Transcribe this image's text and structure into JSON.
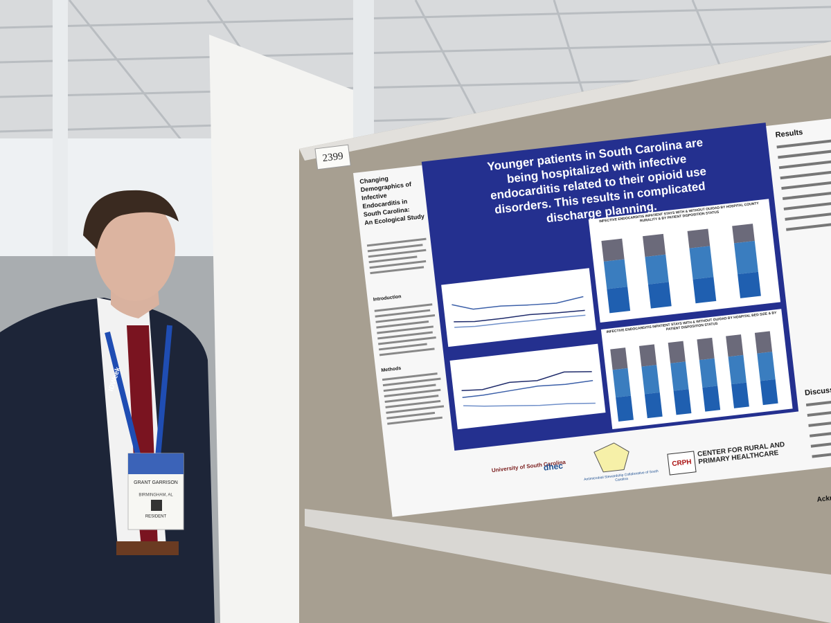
{
  "board": {
    "number": "2399"
  },
  "poster": {
    "title_lines": [
      "Changing",
      "Demographics of",
      "Infective",
      "Endocarditis in",
      "South Carolina:",
      "An Ecological Study"
    ],
    "headline_lines": [
      "Younger patients in South Carolina are",
      "being hospitalized with infective",
      "endocarditis related to their opioid use",
      "disorders. This results in complicated",
      "discharge planning."
    ],
    "sections": [
      "Introduction",
      "Methods",
      "Results",
      "Discussion",
      "Acknowledgements"
    ],
    "chart_titles": [
      "INFECTIVE ENDOCARDITIS INPATIENT STAYS WITH & WITHOUT OU/OAD BY HOSPITAL COUNTY RURALITY & BY PATIENT DISPOSITION STATUS",
      "INFECTIVE ENDOCARDITIS INPATIENT STAYS WITH & WITHOUT OU/OAD BY HOSPITAL BED SIZE & BY PATIENT DISPOSITION STATUS"
    ],
    "logos": [
      "University of South Carolina",
      "dhec",
      "Antimicrobial Stewardship Collaborative of South Carolina",
      "CRPH",
      "CENTER FOR RURAL AND PRIMARY HEALTHCARE"
    ]
  },
  "badge": {
    "name": "GRANT GARRISON",
    "location": "BIRMINGHAM, AL",
    "role": "RESIDENT",
    "lanyard": "IDWeek"
  }
}
